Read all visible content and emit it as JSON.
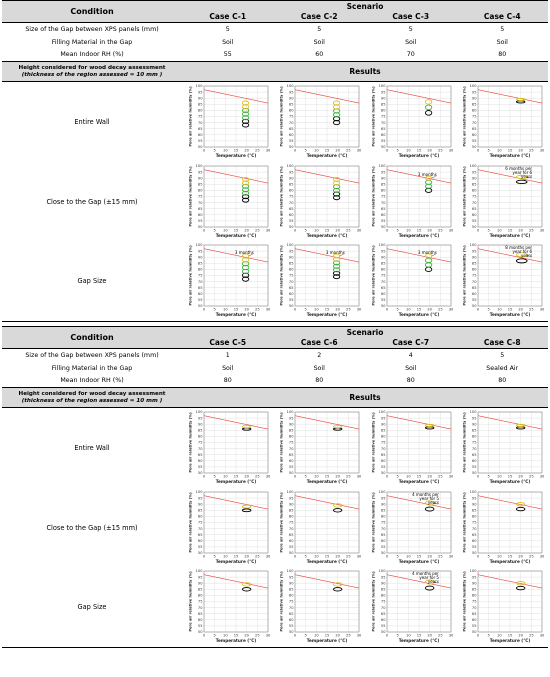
{
  "headers": {
    "condition": "Condition",
    "scenario": "Scenario",
    "results": "Results",
    "height_line1": "Height considered for wood decay assessment",
    "height_line2": "(thickness of the region assessed = 10 mm )"
  },
  "param_labels": [
    "Size of the Gap between XPS panels (mm)",
    "Filling Material in the Gap",
    "Mean Indoor RH (%)"
  ],
  "row_labels": [
    "Entire Wall",
    "Close to the Gap (±15 mm)",
    "Gap Size"
  ],
  "axis": {
    "xlabel": "Temperature (°C)",
    "ylabel": "Pore air relative humidity (%)",
    "xticks": [
      "0",
      "5",
      "10",
      "15",
      "20",
      "25",
      "30"
    ],
    "yticks": [
      "50",
      "55",
      "60",
      "65",
      "70",
      "75",
      "80",
      "85",
      "90",
      "95",
      "100"
    ]
  },
  "colors": {
    "header_bg": "#d9d9d9",
    "threshold_line": "#e8443a",
    "loop_green": "#3cb43c",
    "loop_yellow": "#e0c020",
    "loop_black": "#000000",
    "grid": "#d8d8d8"
  },
  "table1": {
    "cases": [
      "Case C-1",
      "Case C-2",
      "Case C-3",
      "Case C-4"
    ],
    "params": [
      [
        "5",
        "5",
        "5",
        "5"
      ],
      [
        "Soil",
        "Soil",
        "Soil",
        "Soil"
      ],
      [
        "55",
        "60",
        "70",
        "80"
      ]
    ],
    "annotations": [
      [
        "",
        "",
        "",
        ""
      ],
      [
        "",
        "",
        "3 months",
        "6 months per year for 6 years"
      ],
      [
        "3 months",
        "3 months",
        "3 months",
        "8 months per year for 6 years"
      ]
    ]
  },
  "table2": {
    "cases": [
      "Case C-5",
      "Case C-6",
      "Case C-7",
      "Case C-8"
    ],
    "params": [
      [
        "1",
        "2",
        "4",
        "5"
      ],
      [
        "Soil",
        "Soil",
        "Soil",
        "Sealed Air"
      ],
      [
        "80",
        "80",
        "80",
        "80"
      ]
    ],
    "annotations": [
      [
        "",
        "",
        "",
        ""
      ],
      [
        "",
        "",
        "4 months per year for 5 years",
        ""
      ],
      [
        "",
        "",
        "4 months per year for 5 years",
        ""
      ]
    ]
  },
  "chart_data": {
    "type": "scatter",
    "title": "",
    "xlabel": "Temperature (°C)",
    "ylabel": "Pore air relative humidity (%)",
    "xlim": [
      0,
      30
    ],
    "ylim": [
      50,
      100
    ],
    "grid": true,
    "threshold_line": {
      "x": [
        0,
        30
      ],
      "y": [
        97,
        86
      ]
    },
    "panels": [
      {
        "case": "Case C-1",
        "row": "Entire Wall",
        "x_range": [
          18,
          21
        ],
        "rh_range": [
          68,
          86
        ]
      },
      {
        "case": "Case C-2",
        "row": "Entire Wall",
        "x_range": [
          18,
          21
        ],
        "rh_range": [
          70,
          86
        ]
      },
      {
        "case": "Case C-3",
        "row": "Entire Wall",
        "x_range": [
          18,
          21
        ],
        "rh_range": [
          78,
          87
        ]
      },
      {
        "case": "Case C-4",
        "row": "Entire Wall",
        "x_range": [
          18,
          22
        ],
        "rh_range": [
          87,
          89
        ]
      },
      {
        "case": "Case C-1",
        "row": "Close to the Gap (±15 mm)",
        "x_range": [
          18,
          21
        ],
        "rh_range": [
          72,
          89
        ]
      },
      {
        "case": "Case C-2",
        "row": "Close to the Gap (±15 mm)",
        "x_range": [
          18,
          21
        ],
        "rh_range": [
          74,
          89
        ]
      },
      {
        "case": "Case C-3",
        "row": "Close to the Gap (±15 mm)",
        "x_range": [
          18,
          21
        ],
        "rh_range": [
          80,
          90
        ]
      },
      {
        "case": "Case C-4",
        "row": "Close to the Gap (±15 mm)",
        "x_range": [
          18,
          23
        ],
        "rh_range": [
          87,
          91
        ]
      },
      {
        "case": "Case C-1",
        "row": "Gap Size",
        "x_range": [
          18,
          21
        ],
        "rh_range": [
          72,
          91
        ]
      },
      {
        "case": "Case C-2",
        "row": "Gap Size",
        "x_range": [
          18,
          21
        ],
        "rh_range": [
          74,
          91
        ]
      },
      {
        "case": "Case C-3",
        "row": "Gap Size",
        "x_range": [
          18,
          21
        ],
        "rh_range": [
          80,
          91
        ]
      },
      {
        "case": "Case C-4",
        "row": "Gap Size",
        "x_range": [
          18,
          23
        ],
        "rh_range": [
          87,
          92
        ]
      },
      {
        "case": "Case C-5",
        "row": "Entire Wall",
        "x_range": [
          18,
          22
        ],
        "rh_range": [
          86,
          88
        ]
      },
      {
        "case": "Case C-6",
        "row": "Entire Wall",
        "x_range": [
          18,
          22
        ],
        "rh_range": [
          86,
          88
        ]
      },
      {
        "case": "Case C-7",
        "row": "Entire Wall",
        "x_range": [
          18,
          22
        ],
        "rh_range": [
          87,
          89
        ]
      },
      {
        "case": "Case C-8",
        "row": "Entire Wall",
        "x_range": [
          18,
          22
        ],
        "rh_range": [
          87,
          89
        ]
      },
      {
        "case": "Case C-5",
        "row": "Close to the Gap (±15 mm)",
        "x_range": [
          18,
          22
        ],
        "rh_range": [
          85,
          88
        ]
      },
      {
        "case": "Case C-6",
        "row": "Close to the Gap (±15 mm)",
        "x_range": [
          18,
          22
        ],
        "rh_range": [
          85,
          89
        ]
      },
      {
        "case": "Case C-7",
        "row": "Close to the Gap (±15 mm)",
        "x_range": [
          18,
          22
        ],
        "rh_range": [
          86,
          91
        ]
      },
      {
        "case": "Case C-8",
        "row": "Close to the Gap (±15 mm)",
        "x_range": [
          18,
          22
        ],
        "rh_range": [
          86,
          90
        ]
      },
      {
        "case": "Case C-5",
        "row": "Gap Size",
        "x_range": [
          18,
          22
        ],
        "rh_range": [
          85,
          89
        ]
      },
      {
        "case": "Case C-6",
        "row": "Gap Size",
        "x_range": [
          18,
          22
        ],
        "rh_range": [
          85,
          89
        ]
      },
      {
        "case": "Case C-7",
        "row": "Gap Size",
        "x_range": [
          18,
          22
        ],
        "rh_range": [
          86,
          91
        ]
      },
      {
        "case": "Case C-8",
        "row": "Gap Size",
        "x_range": [
          18,
          22
        ],
        "rh_range": [
          86,
          90
        ]
      }
    ]
  }
}
